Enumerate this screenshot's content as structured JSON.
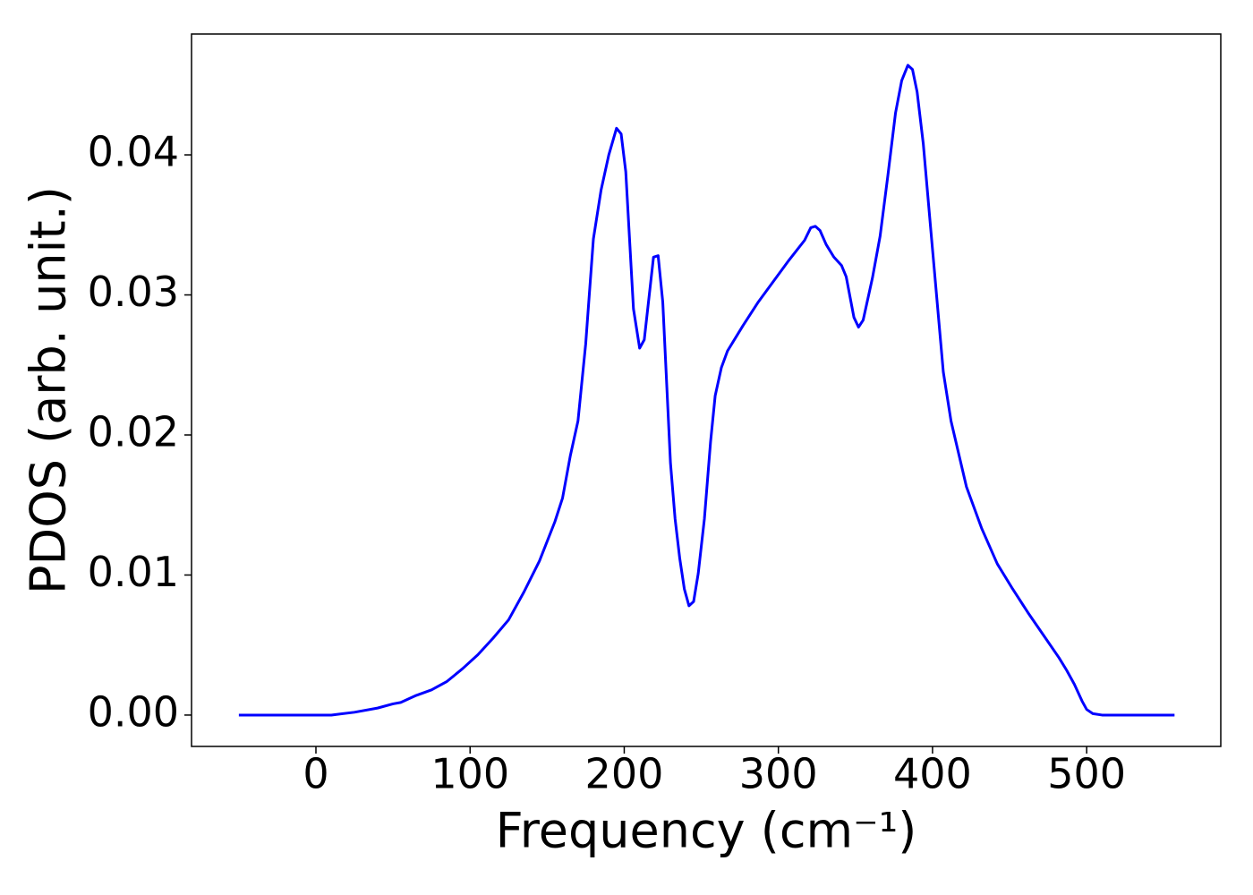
{
  "chart_data": {
    "type": "line",
    "xlabel": "Frequency (cm⁻¹)",
    "ylabel": "PDOS (arb. unit.)",
    "x": [
      -50,
      0,
      10,
      25,
      40,
      50,
      55,
      65,
      75,
      85,
      95,
      105,
      115,
      125,
      135,
      145,
      155,
      160,
      165,
      170,
      175,
      180,
      185,
      190,
      195,
      198,
      201,
      206,
      210,
      213,
      219,
      222,
      225,
      230,
      233,
      236,
      239,
      242,
      245,
      248,
      252,
      256,
      259,
      263,
      267,
      277,
      287,
      297,
      307,
      317,
      321,
      324,
      327,
      331,
      336,
      341,
      344,
      349,
      352,
      355,
      361,
      366,
      371,
      376,
      380,
      384,
      387,
      390,
      394,
      399,
      403,
      407,
      412,
      422,
      432,
      442,
      452,
      462,
      472,
      482,
      487,
      492,
      497,
      500,
      504,
      510,
      557
    ],
    "series": [
      {
        "name": "PDOS",
        "color": "#0000ff",
        "values": [
          0,
          0,
          0,
          0.0002,
          0.0005,
          0.0008,
          0.0009,
          0.0014,
          0.0018,
          0.0024,
          0.0033,
          0.0043,
          0.0055,
          0.0068,
          0.0088,
          0.011,
          0.0138,
          0.0155,
          0.0185,
          0.021,
          0.0265,
          0.034,
          0.0375,
          0.04,
          0.0419,
          0.0415,
          0.0388,
          0.029,
          0.0262,
          0.0268,
          0.0327,
          0.0328,
          0.0295,
          0.018,
          0.014,
          0.0112,
          0.009,
          0.0078,
          0.0081,
          0.0101,
          0.014,
          0.0195,
          0.0228,
          0.0248,
          0.026,
          0.0278,
          0.0295,
          0.031,
          0.0325,
          0.0339,
          0.0348,
          0.0349,
          0.0346,
          0.0336,
          0.0327,
          0.0321,
          0.0313,
          0.0284,
          0.0277,
          0.0282,
          0.0312,
          0.0342,
          0.0385,
          0.043,
          0.0453,
          0.0464,
          0.0461,
          0.0445,
          0.0408,
          0.0345,
          0.0295,
          0.0245,
          0.021,
          0.0163,
          0.0133,
          0.0108,
          0.009,
          0.0073,
          0.0057,
          0.0041,
          0.0032,
          0.0022,
          0.001,
          0.0004,
          0.0001,
          0,
          0
        ]
      }
    ],
    "xlim": [
      -80.7,
      587
    ],
    "ylim": [
      -0.00224,
      0.04863
    ],
    "xticks": [
      0,
      100,
      200,
      300,
      400,
      500
    ],
    "yticks": [
      {
        "value": 0,
        "label": "0.00"
      },
      0.01,
      0.02,
      0.03,
      0.04
    ],
    "grid": false
  }
}
